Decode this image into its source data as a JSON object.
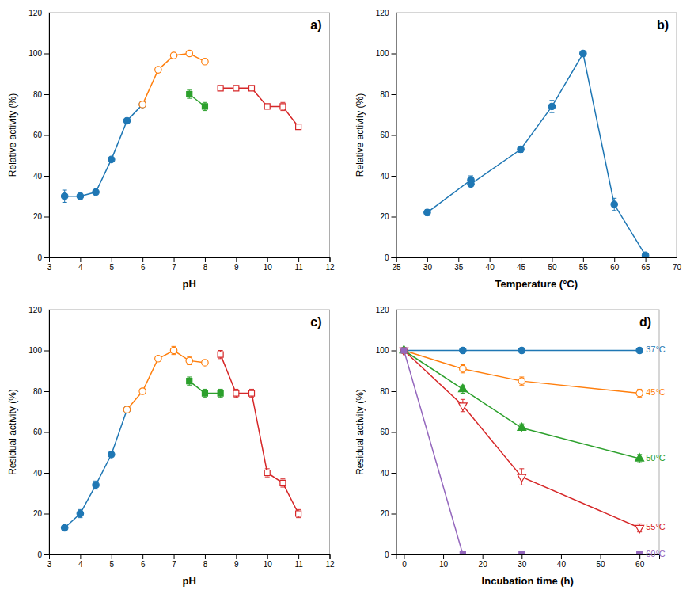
{
  "chart_data": [
    {
      "type": "line",
      "annotations": [
        "a)"
      ],
      "xlabel": "pH",
      "ylabel": "Relative activity (%)",
      "xlim": [
        3,
        12
      ],
      "xticks": [
        3,
        4,
        5,
        6,
        7,
        8,
        9,
        10,
        11,
        12
      ],
      "ylim": [
        0,
        120
      ],
      "yticks": [
        0,
        20,
        40,
        60,
        80,
        100,
        120
      ],
      "grid": false,
      "series": [
        {
          "x": [
            3.5,
            4.0,
            4.5,
            5.0,
            5.5,
            6.0
          ],
          "values": [
            30,
            30,
            32,
            48,
            67,
            75
          ],
          "errors": [
            3,
            1.5,
            1,
            1,
            1,
            1
          ],
          "marker": "circle"
        },
        {
          "x": [
            6.0,
            6.5,
            7.0,
            7.5,
            8.0
          ],
          "values": [
            75,
            92,
            99,
            100,
            96
          ],
          "errors": [
            1,
            1,
            1,
            1,
            1
          ],
          "marker": "circle-open"
        },
        {
          "x": [
            7.5,
            8.0
          ],
          "values": [
            80,
            74
          ],
          "errors": [
            2,
            2
          ],
          "marker": "square"
        },
        {
          "x": [
            8.5,
            9.0,
            9.5,
            10.0,
            10.5,
            11.0
          ],
          "values": [
            83,
            83,
            83,
            74,
            74,
            64
          ],
          "errors": [
            1,
            1,
            1,
            1,
            2,
            1
          ],
          "marker": "square-open"
        }
      ]
    },
    {
      "type": "line",
      "annotations": [
        "b)"
      ],
      "xlabel": "Temperature (°C)",
      "ylabel": "Relative activity (%)",
      "xlim": [
        25,
        70
      ],
      "xticks": [
        25,
        30,
        35,
        40,
        45,
        50,
        55,
        60,
        65,
        70
      ],
      "ylim": [
        0,
        120
      ],
      "yticks": [
        0,
        20,
        40,
        60,
        80,
        100,
        120
      ],
      "grid": false,
      "series": [
        {
          "x": [
            30,
            37,
            37,
            45,
            50,
            55,
            60,
            65
          ],
          "values": [
            22,
            38,
            36,
            53,
            74,
            100,
            26,
            1
          ],
          "errors": [
            1.5,
            2,
            2,
            1.5,
            3,
            1,
            3,
            0.5
          ],
          "marker": "circle"
        }
      ]
    },
    {
      "type": "line",
      "annotations": [
        "c)"
      ],
      "xlabel": "pH",
      "ylabel": "Residual activity (%)",
      "xlim": [
        3,
        12
      ],
      "xticks": [
        3,
        4,
        5,
        6,
        7,
        8,
        9,
        10,
        11,
        12
      ],
      "ylim": [
        0,
        120
      ],
      "yticks": [
        0,
        20,
        40,
        60,
        80,
        100,
        120
      ],
      "grid": false,
      "series": [
        {
          "x": [
            3.5,
            4.0,
            4.5,
            5.0,
            5.5
          ],
          "values": [
            13,
            20,
            34,
            49,
            71
          ],
          "errors": [
            1,
            2,
            2,
            1,
            1
          ],
          "marker": "circle"
        },
        {
          "x": [
            5.5,
            6.0,
            6.5,
            7.0,
            7.5,
            8.0
          ],
          "values": [
            71,
            80,
            96,
            100,
            95,
            94
          ],
          "errors": [
            1,
            1,
            1,
            2,
            2,
            1
          ],
          "marker": "circle-open"
        },
        {
          "x": [
            7.5,
            8.0,
            8.5
          ],
          "values": [
            85,
            79,
            79
          ],
          "errors": [
            2,
            2,
            2
          ],
          "marker": "square"
        },
        {
          "x": [
            8.5,
            9.0,
            9.5,
            10.0,
            10.5,
            11.0
          ],
          "values": [
            98,
            79,
            79,
            40,
            35,
            20
          ],
          "errors": [
            2,
            2,
            2,
            2,
            2,
            2
          ],
          "marker": "square-open"
        }
      ]
    },
    {
      "type": "line",
      "annotations": [
        "d)"
      ],
      "xlabel": "Incubation time (h)",
      "ylabel": "Residual activity (%)",
      "xlim": [
        -2,
        65
      ],
      "xticks": [
        0,
        10,
        20,
        30,
        40,
        50,
        60
      ],
      "ylim": [
        0,
        120
      ],
      "yticks": [
        0,
        20,
        40,
        60,
        80,
        100,
        120
      ],
      "grid": false,
      "series": [
        {
          "name": "37°C",
          "x": [
            0,
            15,
            30,
            60
          ],
          "values": [
            100,
            100,
            100,
            100
          ],
          "errors": [
            0,
            0,
            0,
            0
          ],
          "marker": "circle"
        },
        {
          "name": "45°C",
          "x": [
            0,
            15,
            30,
            60
          ],
          "values": [
            100,
            91,
            85,
            79
          ],
          "errors": [
            0,
            2,
            2,
            2
          ],
          "marker": "circle-open"
        },
        {
          "name": "50°C",
          "x": [
            0,
            15,
            30,
            60
          ],
          "values": [
            100,
            81,
            62,
            47
          ],
          "errors": [
            0,
            2,
            2,
            2
          ],
          "marker": "triangle-up"
        },
        {
          "name": "55°C",
          "x": [
            0,
            15,
            30,
            60
          ],
          "values": [
            100,
            73,
            38,
            13
          ],
          "errors": [
            0,
            3,
            4,
            2
          ],
          "marker": "triangle-down-open"
        },
        {
          "name": "60°C",
          "x": [
            0,
            15,
            30,
            60
          ],
          "values": [
            100,
            0,
            0,
            0
          ],
          "errors": [
            0,
            0,
            0,
            0
          ],
          "marker": "square"
        }
      ]
    }
  ]
}
